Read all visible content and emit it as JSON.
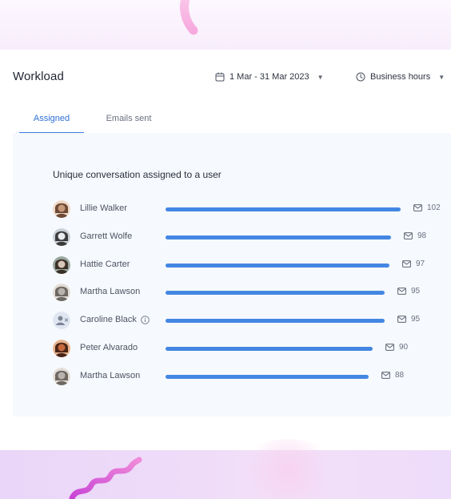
{
  "header": {
    "title": "Workload",
    "date_range": "1 Mar - 31 Mar 2023",
    "hours_filter": "Business hours"
  },
  "tabs": [
    {
      "label": "Assigned",
      "active": true
    },
    {
      "label": "Emails sent",
      "active": false
    }
  ],
  "card": {
    "title": "Unique conversation assigned to a user"
  },
  "chart_data": {
    "type": "bar",
    "orientation": "horizontal",
    "title": "Unique conversation assigned to a user",
    "categories": [
      "Lillie Walker",
      "Garrett Wolfe",
      "Hattie Carter",
      "Martha Lawson",
      "Caroline Black",
      "Peter Alvarado",
      "Martha Lawson"
    ],
    "values": [
      102,
      98,
      97,
      95,
      95,
      90,
      88
    ],
    "color": "#4387e3"
  },
  "users": [
    {
      "name": "Lillie Walker",
      "value": "102",
      "avatar": "photo-avatar",
      "info": false
    },
    {
      "name": "Garrett Wolfe",
      "value": "98",
      "avatar": "photo-avatar",
      "info": false
    },
    {
      "name": "Hattie Carter",
      "value": "97",
      "avatar": "photo-avatar",
      "info": false
    },
    {
      "name": "Martha Lawson",
      "value": "95",
      "avatar": "photo-avatar",
      "info": false
    },
    {
      "name": "Caroline Black",
      "value": "95",
      "avatar": "removed-user-icon",
      "info": true
    },
    {
      "name": "Peter Alvarado",
      "value": "90",
      "avatar": "photo-avatar",
      "info": false
    },
    {
      "name": "Martha Lawson",
      "value": "88",
      "avatar": "photo-avatar",
      "info": false
    }
  ],
  "colors": {
    "accent": "#3a7be0",
    "bar": "#4387e3",
    "card_background": "#f6f9fd"
  }
}
